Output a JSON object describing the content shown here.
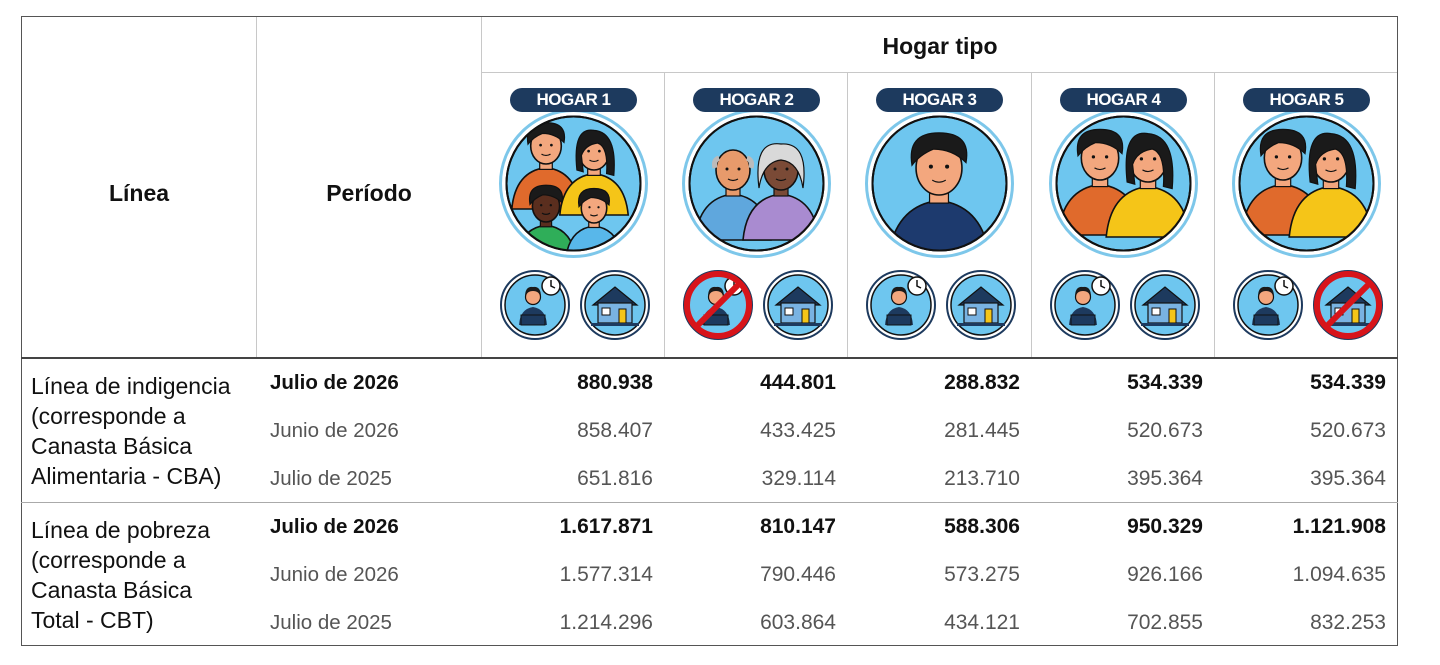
{
  "header": {
    "linea": "Línea",
    "periodo": "Período",
    "hogar_tipo": "Hogar tipo"
  },
  "households": [
    {
      "label": "HOGAR 1",
      "people": "couple-with-two-children",
      "works_icon": "remote-worker-icon",
      "works_crossed": false,
      "home_icon": "house-icon",
      "home_crossed": false
    },
    {
      "label": "HOGAR 2",
      "people": "elderly-couple",
      "works_icon": "remote-worker-icon",
      "works_crossed": true,
      "home_icon": "house-icon",
      "home_crossed": false
    },
    {
      "label": "HOGAR 3",
      "people": "single-adult-man",
      "works_icon": "remote-worker-icon",
      "works_crossed": false,
      "home_icon": "house-icon",
      "home_crossed": false
    },
    {
      "label": "HOGAR 4",
      "people": "adult-couple",
      "works_icon": "remote-worker-icon",
      "works_crossed": false,
      "home_icon": "house-icon",
      "home_crossed": false
    },
    {
      "label": "HOGAR 5",
      "people": "adult-couple",
      "works_icon": "remote-worker-icon",
      "works_crossed": false,
      "home_icon": "house-icon",
      "home_crossed": true
    }
  ],
  "sections": [
    {
      "label_lines": [
        "Línea de indigencia",
        "(corresponde a",
        "Canasta Básica",
        "Alimentaria - CBA)"
      ],
      "rows": [
        {
          "period": "Julio de 2026",
          "bold": true,
          "values": [
            "880.938",
            "444.801",
            "288.832",
            "534.339",
            "534.339"
          ]
        },
        {
          "period": "Junio de 2026",
          "bold": false,
          "values": [
            "858.407",
            "433.425",
            "281.445",
            "520.673",
            "520.673"
          ]
        },
        {
          "period": "Julio de 2025",
          "bold": false,
          "values": [
            "651.816",
            "329.114",
            "213.710",
            "395.364",
            "395.364"
          ]
        }
      ]
    },
    {
      "label_lines": [
        "Línea de pobreza",
        "(corresponde a",
        "Canasta Básica",
        "Total - CBT)"
      ],
      "rows": [
        {
          "period": "Julio de 2026",
          "bold": true,
          "values": [
            "1.617.871",
            "810.147",
            "588.306",
            "950.329",
            "1.121.908"
          ]
        },
        {
          "period": "Junio de 2026",
          "bold": false,
          "values": [
            "1.577.314",
            "790.446",
            "573.275",
            "926.166",
            "1.094.635"
          ]
        },
        {
          "period": "Julio de 2025",
          "bold": false,
          "values": [
            "1.214.296",
            "603.864",
            "434.121",
            "702.855",
            "832.253"
          ]
        }
      ]
    }
  ],
  "colors": {
    "pill": "#1d3a5e",
    "circle_bg": "#6ec6ef",
    "circle_ring": "#7dc7ea",
    "prohibit": "#d7141a"
  }
}
